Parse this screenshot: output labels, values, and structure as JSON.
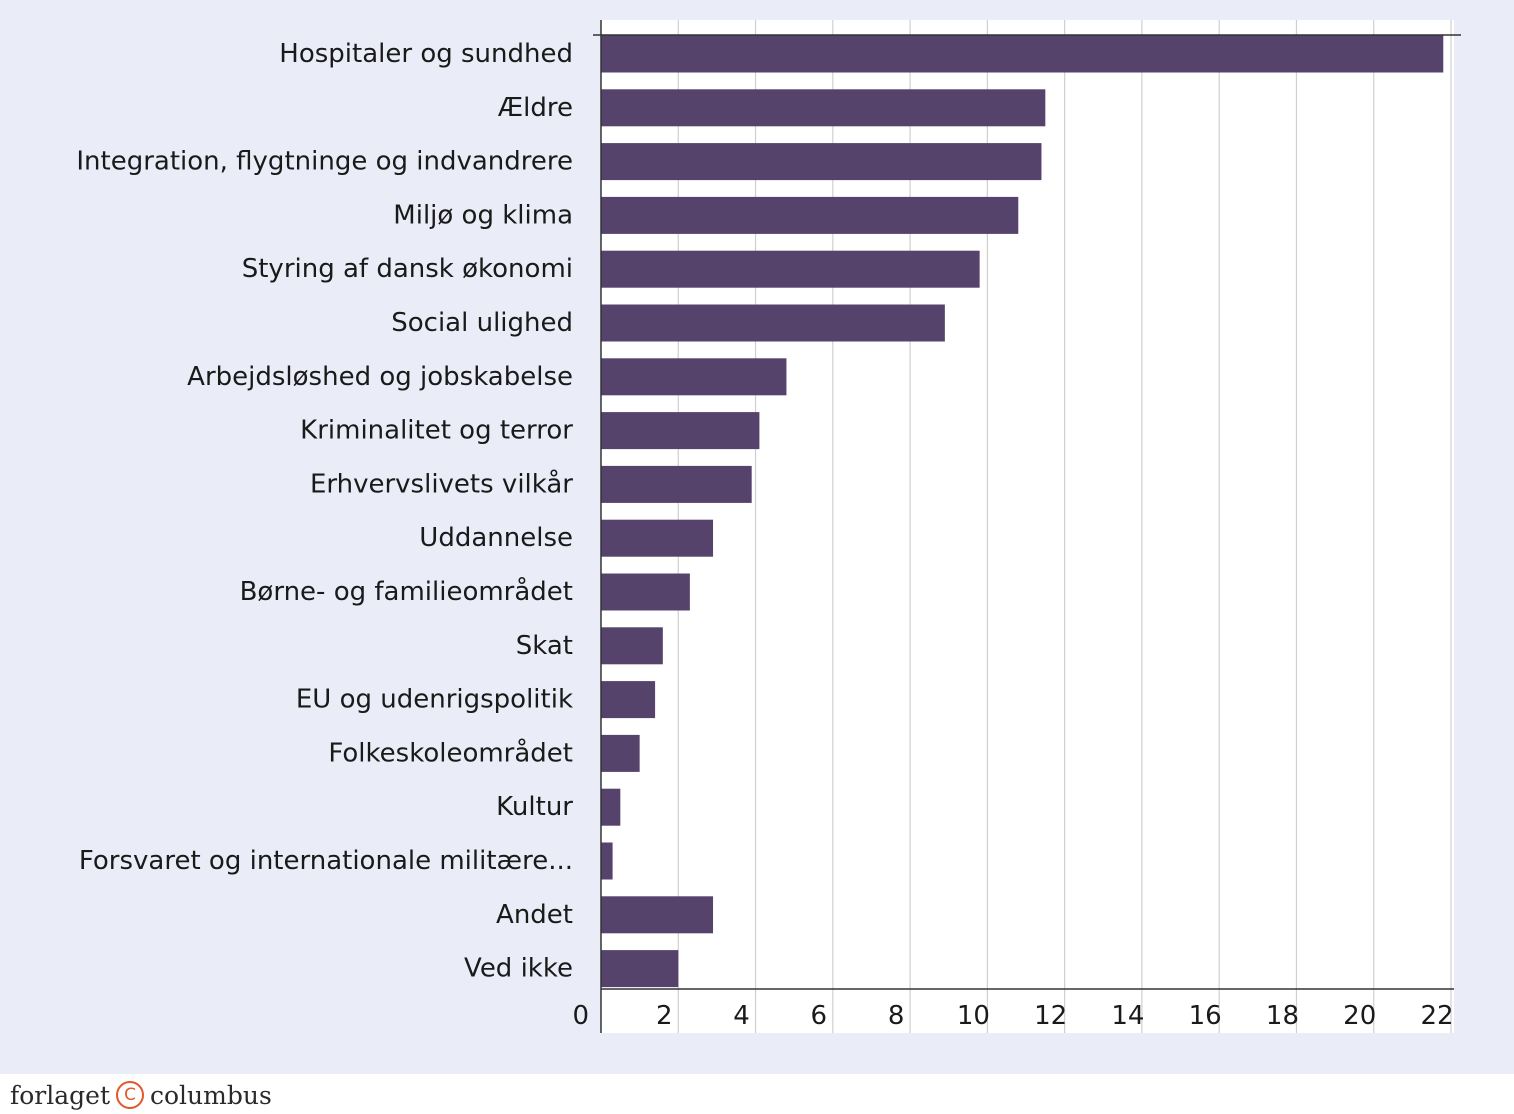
{
  "colors": {
    "panel_background": "#eaedf7",
    "plot_background": "#ffffff",
    "bar": "#55436b",
    "grid": "#cfcfcf",
    "axis": "#333333",
    "text": "#1a1a1a",
    "footer_icon": "#e2572b"
  },
  "chart_data": {
    "type": "bar",
    "orientation": "horizontal",
    "categories": [
      "Hospitaler og sundhed",
      "Ældre",
      "Integration, flygtninge og indvandrere",
      "Miljø og klima",
      "Styring af dansk økonomi",
      "Social ulighed",
      "Arbejdsløshed og jobskabelse",
      "Kriminalitet og terror",
      "Erhvervslivets vilkår",
      "Uddannelse",
      "Børne- og familieområdet",
      "Skat",
      "EU og udenrigspolitik",
      "Folkeskoleområdet",
      "Kultur",
      "Forsvaret og internationale militære...",
      "Andet",
      "Ved ikke"
    ],
    "values": [
      21.8,
      11.5,
      11.4,
      10.8,
      9.8,
      8.9,
      4.8,
      4.1,
      3.9,
      2.9,
      2.3,
      1.6,
      1.4,
      1.0,
      0.5,
      0.3,
      2.9,
      2.0
    ],
    "xlim": [
      0,
      22
    ],
    "xticks": [
      "0",
      "2",
      "4",
      "6",
      "8",
      "10",
      "12",
      "14",
      "16",
      "18",
      "20",
      "22"
    ],
    "xtick_values": [
      0,
      2,
      4,
      6,
      8,
      10,
      12,
      14,
      16,
      18,
      20,
      22
    ],
    "grid": true,
    "legend": "none"
  },
  "footer": {
    "publisher_left": "forlaget",
    "copyright_icon": "copyright-circle-icon",
    "copyright_glyph": "C",
    "publisher_right": "columbus"
  }
}
